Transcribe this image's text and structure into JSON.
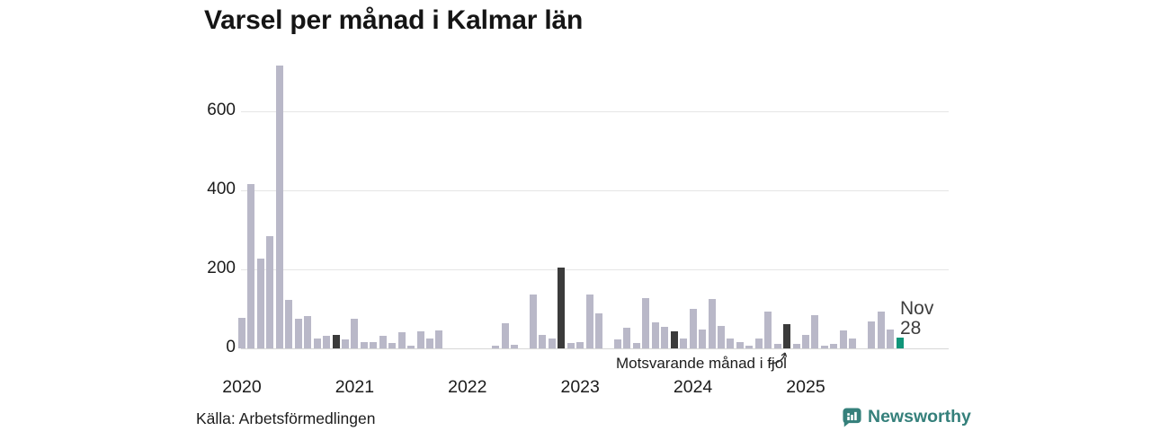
{
  "title": "Varsel per månad i Kalmar län",
  "source": "Källa: Arbetsförmedlingen",
  "brand": {
    "name": "Newsworthy",
    "color": "#35807b"
  },
  "annotation": {
    "compare_label": "Motsvarande månad i fjol"
  },
  "current_point_label": {
    "line1": "Nov",
    "line2": "28"
  },
  "colors": {
    "bar_default": "#b9b8c8",
    "bar_compare_month": "#3b3b3b",
    "bar_current": "#109579",
    "gridline": "#e5e5e5",
    "axis_text": "#1c1c1c"
  },
  "chart_data": {
    "type": "bar",
    "title": "Varsel per månad i Kalmar län",
    "xlabel": "",
    "ylabel": "",
    "start_month": "2020-01",
    "end_month": "2025-11",
    "ylim": [
      0,
      730
    ],
    "yticks": [
      0,
      200,
      400,
      600
    ],
    "ytick_labels": [
      "0",
      "200",
      "400",
      "600"
    ],
    "year_tick_labels": [
      "2020",
      "2021",
      "2022",
      "2023",
      "2024",
      "2025"
    ],
    "grid": "horizontal",
    "legend_position": "none",
    "values": [
      77,
      417,
      228,
      284,
      716,
      122,
      74,
      81,
      25,
      31,
      33,
      22,
      76,
      15,
      16,
      31,
      14,
      41,
      6,
      43,
      25,
      45,
      0,
      0,
      0,
      0,
      0,
      6,
      63,
      9,
      0,
      136,
      34,
      25,
      204,
      14,
      15,
      136,
      88,
      0,
      23,
      52,
      13,
      127,
      66,
      55,
      43,
      25,
      101,
      48,
      125,
      57,
      24,
      16,
      6,
      24,
      93,
      12,
      62,
      12,
      35,
      85,
      6,
      12,
      45,
      25,
      0,
      68,
      93,
      47,
      28
    ],
    "compare_month_indices": [
      10,
      22,
      34,
      46,
      58
    ],
    "current_index": 70,
    "current_value": 28
  }
}
